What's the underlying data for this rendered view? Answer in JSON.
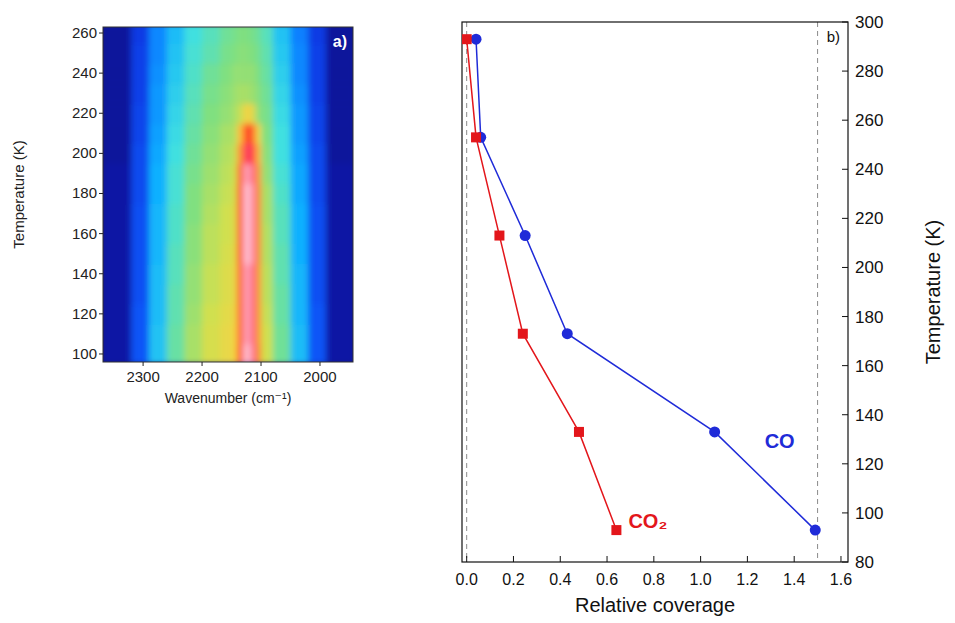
{
  "chart_data": [
    {
      "type": "heatmap",
      "panel_label": "a)",
      "x_label": "Wavenumber (cm⁻¹)",
      "y_label": "Temperature (K)",
      "xlim": [
        2368,
        1944
      ],
      "ylim": [
        96,
        263
      ],
      "xticks": [
        2300,
        2200,
        2100,
        2000
      ],
      "yticks": [
        100,
        120,
        140,
        160,
        180,
        200,
        220,
        240,
        260
      ],
      "x_bins": [
        2370,
        2320,
        2290,
        2260,
        2230,
        2200,
        2170,
        2150,
        2140,
        2130,
        2120,
        2110,
        2100,
        2080,
        2050,
        2020,
        1990,
        1940
      ],
      "y_bins": [
        95,
        105,
        115,
        125,
        135,
        145,
        155,
        165,
        175,
        185,
        195,
        205,
        215,
        225,
        235,
        245,
        255,
        265
      ],
      "color_range": [
        0,
        1
      ],
      "cells": [
        [
          0.05,
          0.2,
          0.35,
          0.45,
          0.52,
          0.57,
          0.6,
          0.62,
          0.8,
          1.0,
          0.96,
          0.74,
          0.56,
          0.46,
          0.34,
          0.2,
          0.05
        ],
        [
          0.05,
          0.2,
          0.35,
          0.45,
          0.52,
          0.57,
          0.6,
          0.62,
          0.78,
          0.98,
          0.95,
          0.72,
          0.56,
          0.46,
          0.34,
          0.2,
          0.05
        ],
        [
          0.05,
          0.2,
          0.34,
          0.44,
          0.51,
          0.56,
          0.59,
          0.61,
          0.78,
          0.98,
          0.95,
          0.72,
          0.55,
          0.45,
          0.33,
          0.2,
          0.05
        ],
        [
          0.05,
          0.19,
          0.34,
          0.44,
          0.5,
          0.55,
          0.58,
          0.6,
          0.78,
          0.98,
          0.95,
          0.72,
          0.54,
          0.45,
          0.33,
          0.19,
          0.05
        ],
        [
          0.05,
          0.19,
          0.34,
          0.43,
          0.5,
          0.55,
          0.58,
          0.6,
          0.78,
          0.98,
          0.95,
          0.72,
          0.54,
          0.44,
          0.33,
          0.19,
          0.05
        ],
        [
          0.05,
          0.19,
          0.33,
          0.43,
          0.49,
          0.54,
          0.57,
          0.59,
          0.8,
          1.0,
          0.97,
          0.74,
          0.53,
          0.44,
          0.32,
          0.19,
          0.05
        ],
        [
          0.05,
          0.19,
          0.33,
          0.42,
          0.49,
          0.54,
          0.56,
          0.58,
          0.8,
          1.0,
          0.97,
          0.74,
          0.53,
          0.43,
          0.32,
          0.19,
          0.05
        ],
        [
          0.05,
          0.19,
          0.33,
          0.42,
          0.48,
          0.53,
          0.56,
          0.58,
          0.8,
          1.0,
          0.97,
          0.74,
          0.52,
          0.43,
          0.32,
          0.19,
          0.05
        ],
        [
          0.05,
          0.18,
          0.32,
          0.41,
          0.48,
          0.52,
          0.55,
          0.57,
          0.8,
          1.0,
          0.97,
          0.74,
          0.52,
          0.42,
          0.31,
          0.18,
          0.05
        ],
        [
          0.05,
          0.18,
          0.32,
          0.41,
          0.47,
          0.51,
          0.54,
          0.56,
          0.78,
          0.98,
          0.95,
          0.72,
          0.5,
          0.41,
          0.31,
          0.18,
          0.05
        ],
        [
          0.04,
          0.18,
          0.31,
          0.4,
          0.46,
          0.5,
          0.53,
          0.55,
          0.72,
          0.92,
          0.9,
          0.68,
          0.49,
          0.4,
          0.3,
          0.18,
          0.04
        ],
        [
          0.04,
          0.17,
          0.3,
          0.39,
          0.45,
          0.49,
          0.52,
          0.53,
          0.66,
          0.8,
          0.78,
          0.62,
          0.48,
          0.4,
          0.29,
          0.17,
          0.04
        ],
        [
          0.04,
          0.17,
          0.29,
          0.38,
          0.44,
          0.48,
          0.5,
          0.52,
          0.55,
          0.62,
          0.6,
          0.5,
          0.47,
          0.39,
          0.29,
          0.17,
          0.04
        ],
        [
          0.04,
          0.16,
          0.29,
          0.37,
          0.43,
          0.47,
          0.49,
          0.51,
          0.52,
          0.52,
          0.51,
          0.49,
          0.46,
          0.38,
          0.28,
          0.16,
          0.04
        ],
        [
          0.04,
          0.16,
          0.28,
          0.36,
          0.42,
          0.46,
          0.48,
          0.5,
          0.5,
          0.5,
          0.5,
          0.48,
          0.45,
          0.37,
          0.27,
          0.16,
          0.04
        ],
        [
          0.04,
          0.16,
          0.27,
          0.35,
          0.41,
          0.44,
          0.47,
          0.48,
          0.49,
          0.49,
          0.48,
          0.47,
          0.44,
          0.36,
          0.27,
          0.16,
          0.04
        ],
        [
          0.04,
          0.15,
          0.27,
          0.34,
          0.4,
          0.43,
          0.46,
          0.47,
          0.48,
          0.48,
          0.47,
          0.46,
          0.43,
          0.35,
          0.26,
          0.15,
          0.04
        ]
      ]
    },
    {
      "type": "line",
      "panel_label": "b)",
      "x_label": "Relative coverage",
      "y_label": "Temperature (K)",
      "xlim": [
        -0.02,
        1.63
      ],
      "ylim": [
        80,
        300
      ],
      "xticks": [
        {
          "value": 0,
          "label": "0.0"
        },
        {
          "value": 0.2,
          "label": "0.2"
        },
        {
          "value": 0.4,
          "label": "0.4"
        },
        {
          "value": 0.6,
          "label": "0.6"
        },
        {
          "value": 0.8,
          "label": "0.8"
        },
        {
          "value": 1,
          "label": "1.0"
        },
        {
          "value": 1.2,
          "label": "1.2"
        },
        {
          "value": 1.4,
          "label": "1.4"
        },
        {
          "value": 1.6,
          "label": "1.6"
        }
      ],
      "yticks": [
        80,
        100,
        120,
        140,
        160,
        180,
        200,
        220,
        240,
        260,
        280,
        300
      ],
      "x_reference_lines": [
        0,
        1.5
      ],
      "series": [
        {
          "name": "CO",
          "color": "#1f2bd8",
          "marker": "circle",
          "x": [
            0.04,
            0.06,
            0.25,
            0.43,
            1.06,
            1.49
          ],
          "values": [
            293,
            253,
            213,
            173,
            133,
            93
          ]
        },
        {
          "name": "CO₂",
          "color": "#e3161b",
          "marker": "square",
          "x": [
            0.0,
            0.04,
            0.14,
            0.24,
            0.48,
            0.64
          ],
          "values": [
            293,
            253,
            213,
            173,
            133,
            93
          ]
        }
      ]
    }
  ]
}
